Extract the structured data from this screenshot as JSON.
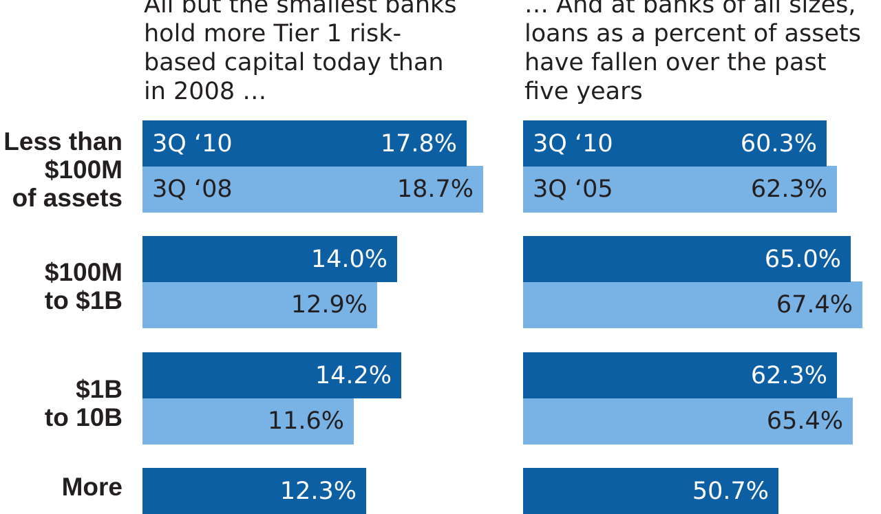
{
  "headings": {
    "left": "All but the smallest banks hold more Tier 1 risk-based capital today than in 2008 …",
    "right": "… And at banks of all sizes, loans as a percent of assets have fallen over the past five years"
  },
  "chart_data": [
    {
      "type": "bar",
      "orientation": "horizontal",
      "title": "All but the smallest banks hold more Tier 1 risk-based capital today than in 2008 …",
      "categories": [
        "Less than $100M of assets",
        "$100M to $1B",
        "$1B to 10B",
        "More"
      ],
      "series": [
        {
          "name": "3Q ‘10",
          "values": [
            17.8,
            14.0,
            14.2,
            12.3
          ],
          "labels": [
            "17.8%",
            "14.0%",
            "14.2%",
            "12.3%"
          ],
          "color": "#0d5fa3"
        },
        {
          "name": "3Q ‘08",
          "values": [
            18.7,
            12.9,
            11.6,
            null
          ],
          "labels": [
            "18.7%",
            "12.9%",
            "11.6%",
            ""
          ],
          "color": "#79b3e5"
        }
      ],
      "grid": false
    },
    {
      "type": "bar",
      "orientation": "horizontal",
      "title": "… And at banks of all sizes, loans as a percent of assets have fallen over the past five years",
      "categories": [
        "Less than $100M of assets",
        "$100M to $1B",
        "$1B to 10B",
        "More"
      ],
      "series": [
        {
          "name": "3Q ‘10",
          "values": [
            60.3,
            65.0,
            62.3,
            50.7
          ],
          "labels": [
            "60.3%",
            "65.0%",
            "62.3%",
            "50.7%"
          ],
          "color": "#0d5fa3"
        },
        {
          "name": "3Q ‘05",
          "values": [
            62.3,
            67.4,
            65.4,
            null
          ],
          "labels": [
            "62.3%",
            "67.4%",
            "65.4%",
            ""
          ],
          "color": "#79b3e5"
        }
      ],
      "grid": false
    }
  ],
  "category_labels": [
    [
      "Less than",
      "$100M",
      "of assets"
    ],
    [
      "$100M",
      "to $1B"
    ],
    [
      "$1B",
      "to 10B"
    ],
    [
      "More"
    ]
  ]
}
